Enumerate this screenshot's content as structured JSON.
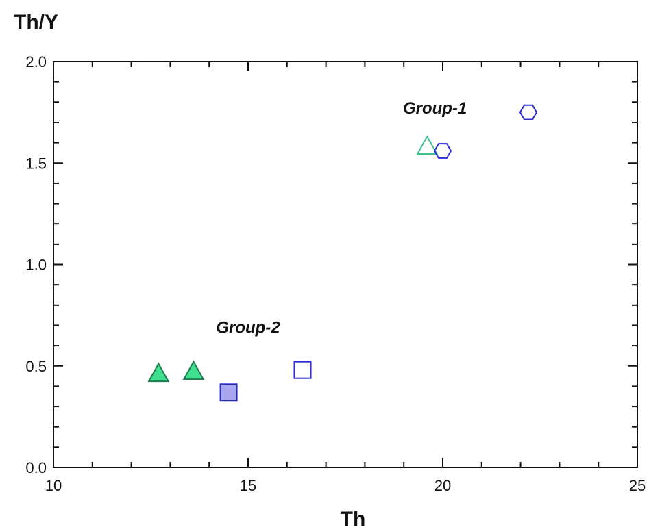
{
  "chart_data": {
    "type": "scatter",
    "title": "",
    "xlabel": "Th",
    "ylabel": "Th/Y",
    "xlim": [
      10,
      25
    ],
    "ylim": [
      0.0,
      2.0
    ],
    "x_ticks": [
      "10",
      "15",
      "20",
      "25"
    ],
    "y_ticks": [
      "0.0",
      "0.5",
      "1.0",
      "1.5",
      "2.0"
    ],
    "grid": false,
    "legend": "none",
    "annotations": [
      {
        "text": "Group-1",
        "x": 19.8,
        "y": 1.77
      },
      {
        "text": "Group-2",
        "x": 15.0,
        "y": 0.69
      }
    ],
    "series": [
      {
        "marker": "triangle-filled",
        "color": "#3ee08f",
        "stroke": "#1f7a4f",
        "points": [
          {
            "x": 12.7,
            "y": 0.46
          },
          {
            "x": 13.6,
            "y": 0.47
          }
        ]
      },
      {
        "marker": "triangle-open",
        "color": "#3ec08a",
        "stroke": "#3ec08a",
        "points": [
          {
            "x": 19.6,
            "y": 1.58
          }
        ]
      },
      {
        "marker": "square-filled",
        "color": "#a9a6f2",
        "stroke": "#2b2bbf",
        "points": [
          {
            "x": 14.5,
            "y": 0.37
          }
        ]
      },
      {
        "marker": "square-open",
        "color": "none",
        "stroke": "#2b2bd9",
        "points": [
          {
            "x": 16.4,
            "y": 0.48
          }
        ]
      },
      {
        "marker": "hexagon-open",
        "color": "none",
        "stroke": "#2b2bd9",
        "points": [
          {
            "x": 20.0,
            "y": 1.56
          },
          {
            "x": 22.2,
            "y": 1.75
          }
        ]
      }
    ]
  }
}
